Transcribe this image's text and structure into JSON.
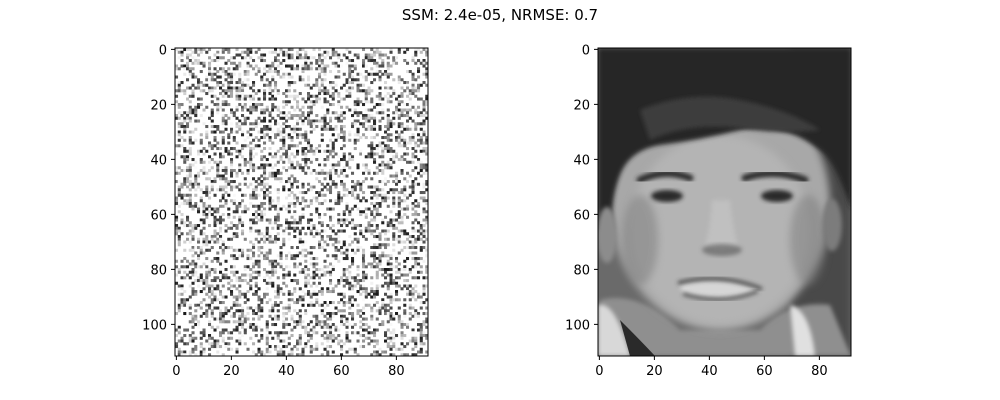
{
  "figure": {
    "title": "SSM: 2.4e-05, NRMSE: 0.7"
  },
  "chart_data": [
    {
      "type": "heatmap",
      "content": "random grayscale noise image",
      "colormap": "gray",
      "image_shape": [
        112,
        92
      ],
      "xlim": [
        -0.5,
        91.5
      ],
      "ylim": [
        111.5,
        -0.5
      ],
      "xticks": [
        0,
        20,
        40,
        60,
        80
      ],
      "yticks": [
        0,
        20,
        40,
        60,
        80,
        100
      ],
      "xtick_labels": [
        "0",
        "20",
        "40",
        "60",
        "80"
      ],
      "ytick_labels": [
        "0",
        "20",
        "40",
        "60",
        "80",
        "100"
      ],
      "grid": false
    },
    {
      "type": "heatmap",
      "content": "grayscale photograph of a face",
      "colormap": "gray",
      "image_shape": [
        112,
        92
      ],
      "xlim": [
        -0.5,
        91.5
      ],
      "ylim": [
        111.5,
        -0.5
      ],
      "xticks": [
        0,
        20,
        40,
        60,
        80
      ],
      "yticks": [
        0,
        20,
        40,
        60,
        80,
        100
      ],
      "xtick_labels": [
        "0",
        "20",
        "40",
        "60",
        "80"
      ],
      "ytick_labels": [
        "0",
        "20",
        "40",
        "60",
        "80",
        "100"
      ],
      "grid": false
    }
  ]
}
